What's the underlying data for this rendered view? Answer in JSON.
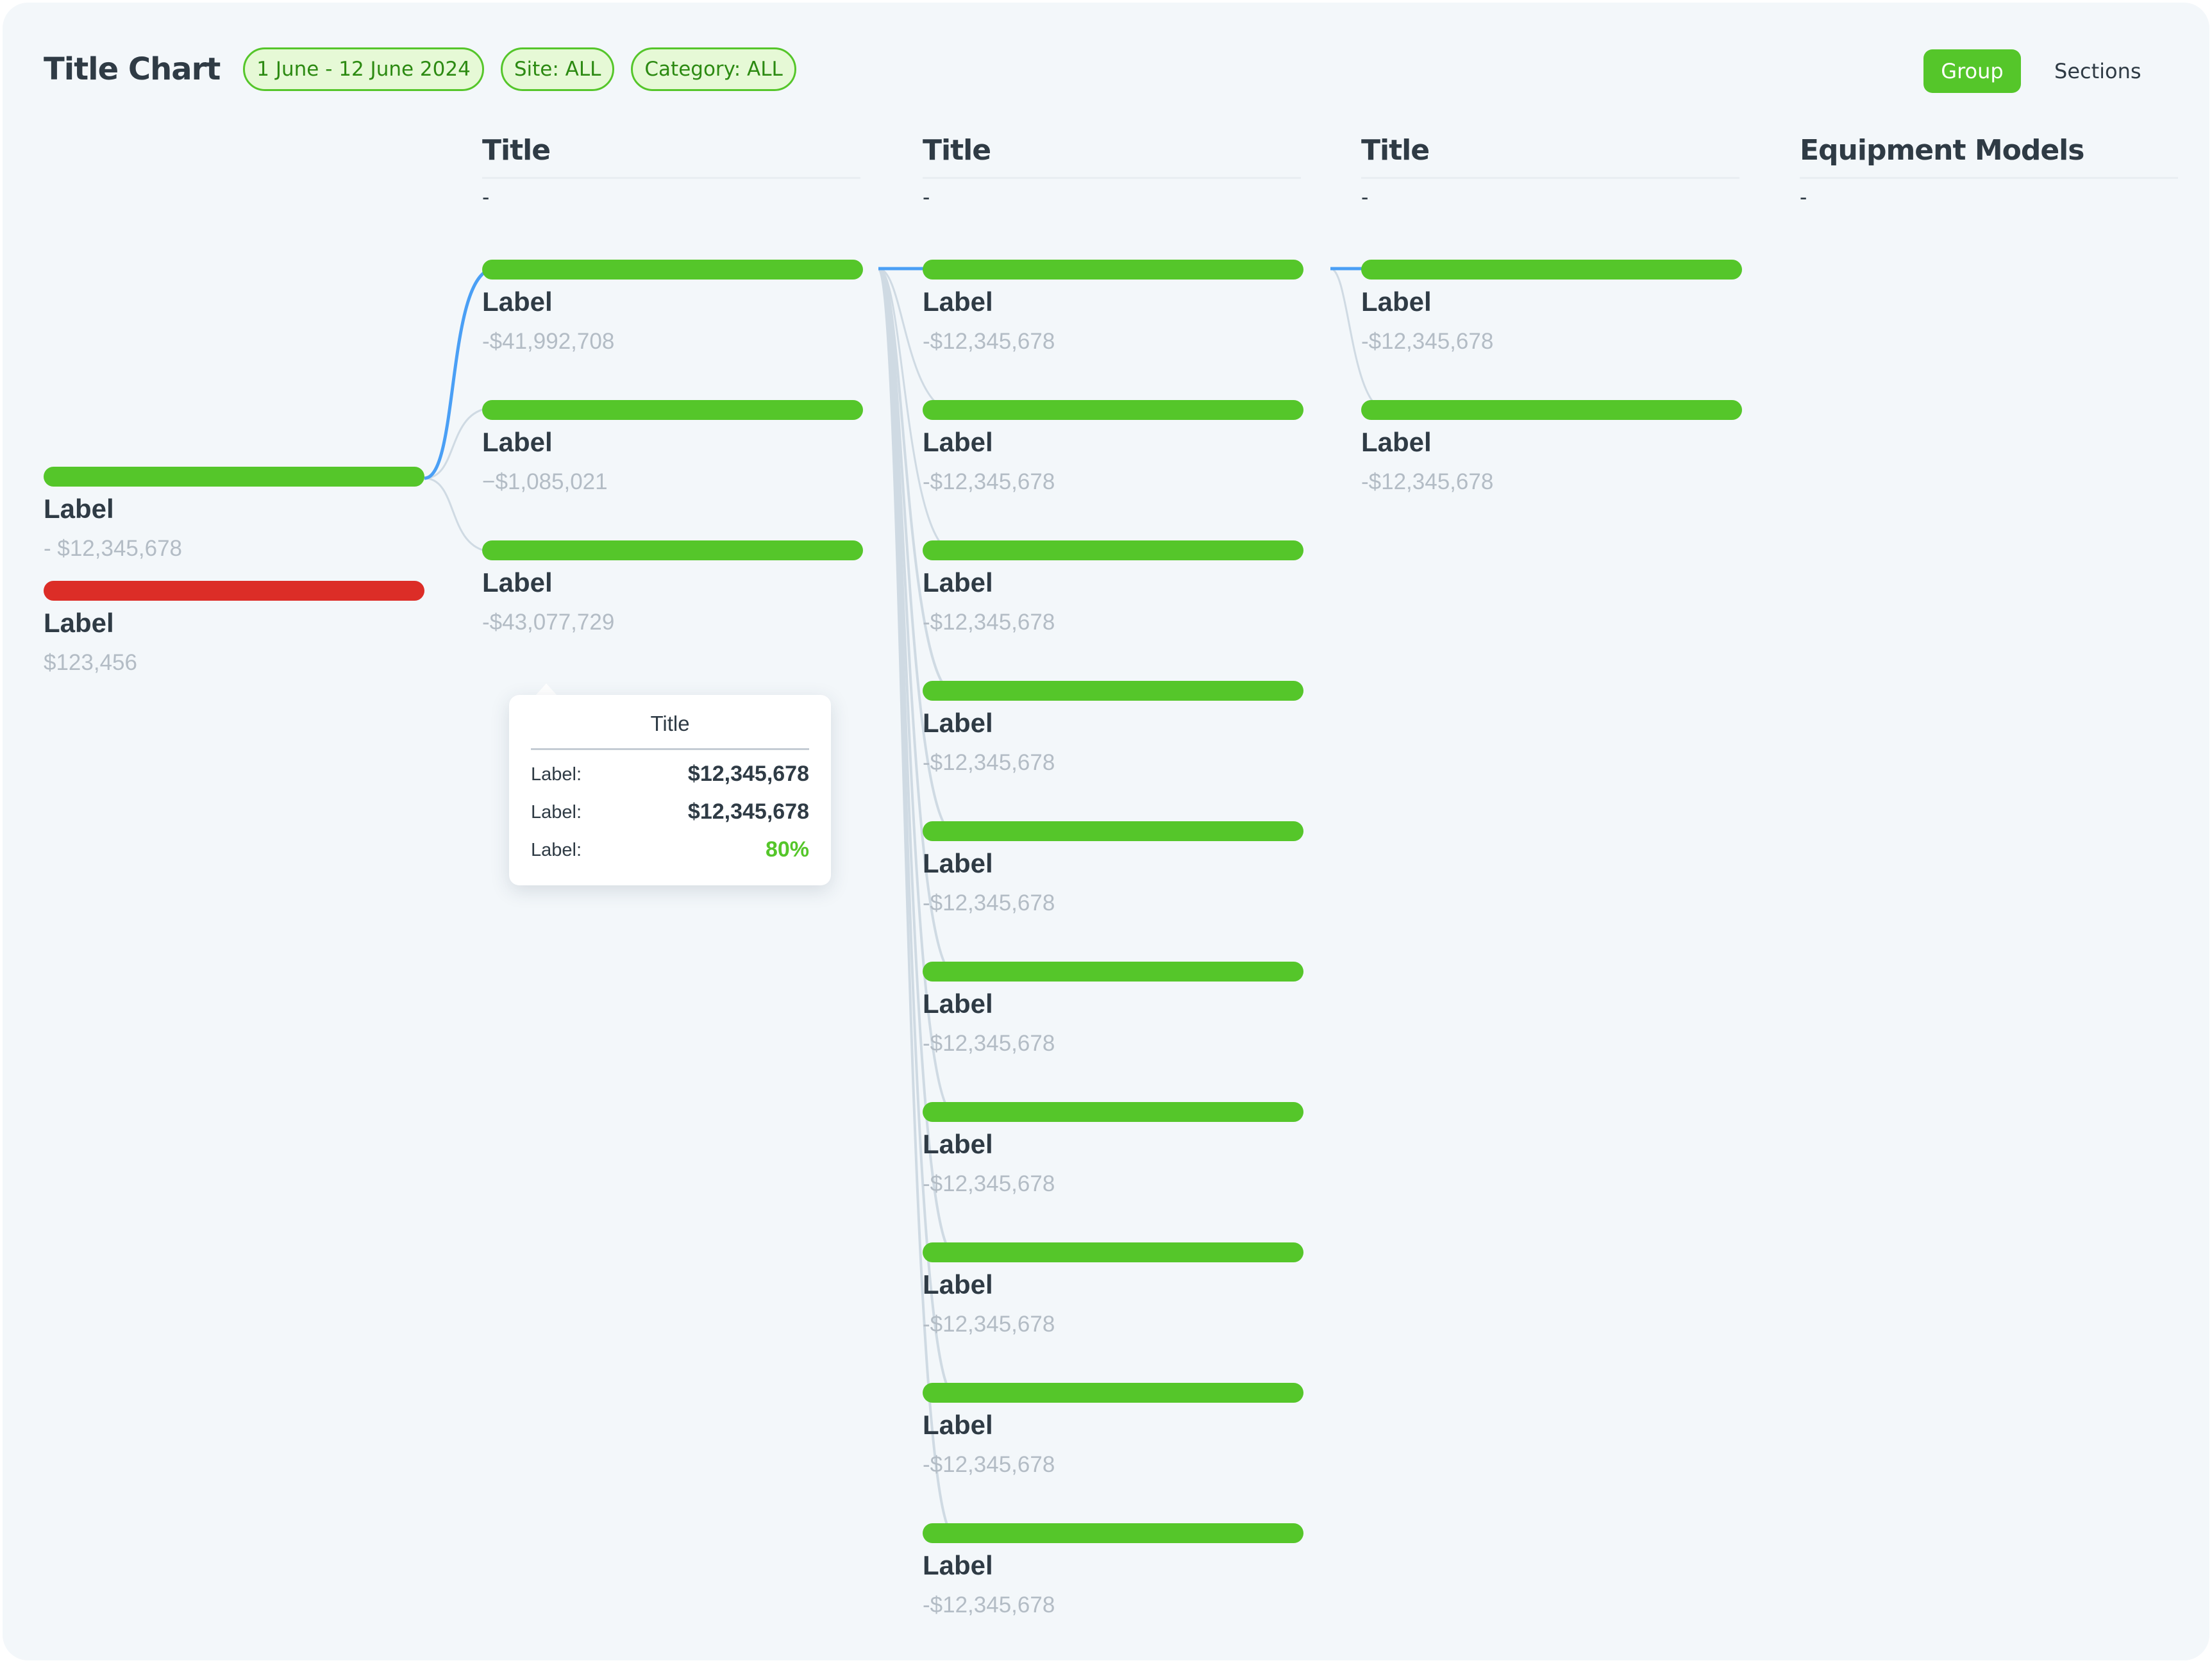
{
  "header": {
    "title": "Title Chart",
    "filters": [
      "1 June - 12 June 2024",
      "Site: ALL",
      "Category: ALL"
    ],
    "group_label": "Group",
    "sections_label": "Sections"
  },
  "colors": {
    "positive": "#55c62a",
    "negative": "#dc2d27",
    "highlight_link": "#4a9ff5",
    "link": "#cfdae3",
    "accent_text": "#55c62a"
  },
  "columns": [
    {
      "title": "",
      "subtitle": "",
      "nodes": [
        {
          "label": "Label",
          "value": "- $12,345,678",
          "status": "positive"
        },
        {
          "label": "Label",
          "value": "$123,456",
          "status": "negative"
        }
      ]
    },
    {
      "title": "Title",
      "subtitle": "-",
      "nodes": [
        {
          "label": "Label",
          "value": "-$41,992,708",
          "status": "positive"
        },
        {
          "label": "Label",
          "value": "−$1,085,021",
          "status": "positive"
        },
        {
          "label": "Label",
          "value": "-$43,077,729",
          "status": "positive"
        }
      ]
    },
    {
      "title": "Title",
      "subtitle": "-",
      "nodes": [
        {
          "label": "Label",
          "value": "-$12,345,678",
          "status": "positive"
        },
        {
          "label": "Label",
          "value": "-$12,345,678",
          "status": "positive"
        },
        {
          "label": "Label",
          "value": "-$12,345,678",
          "status": "positive"
        },
        {
          "label": "Label",
          "value": "-$12,345,678",
          "status": "positive"
        },
        {
          "label": "Label",
          "value": "-$12,345,678",
          "status": "positive"
        },
        {
          "label": "Label",
          "value": "-$12,345,678",
          "status": "positive"
        },
        {
          "label": "Label",
          "value": "-$12,345,678",
          "status": "positive"
        },
        {
          "label": "Label",
          "value": "-$12,345,678",
          "status": "positive"
        },
        {
          "label": "Label",
          "value": "-$12,345,678",
          "status": "positive"
        },
        {
          "label": "Label",
          "value": "-$12,345,678",
          "status": "positive"
        }
      ]
    },
    {
      "title": "Title",
      "subtitle": "-",
      "nodes": [
        {
          "label": "Label",
          "value": "-$12,345,678",
          "status": "positive"
        },
        {
          "label": "Label",
          "value": "-$12,345,678",
          "status": "positive"
        }
      ]
    },
    {
      "title": "Equipment Models",
      "subtitle": "-",
      "nodes": []
    }
  ],
  "tooltip": {
    "title": "Title",
    "rows": [
      {
        "key": "Label:",
        "value": "$12,345,678"
      },
      {
        "key": "Label:",
        "value": "$12,345,678"
      },
      {
        "key": "Label:",
        "value": "80%"
      }
    ]
  }
}
